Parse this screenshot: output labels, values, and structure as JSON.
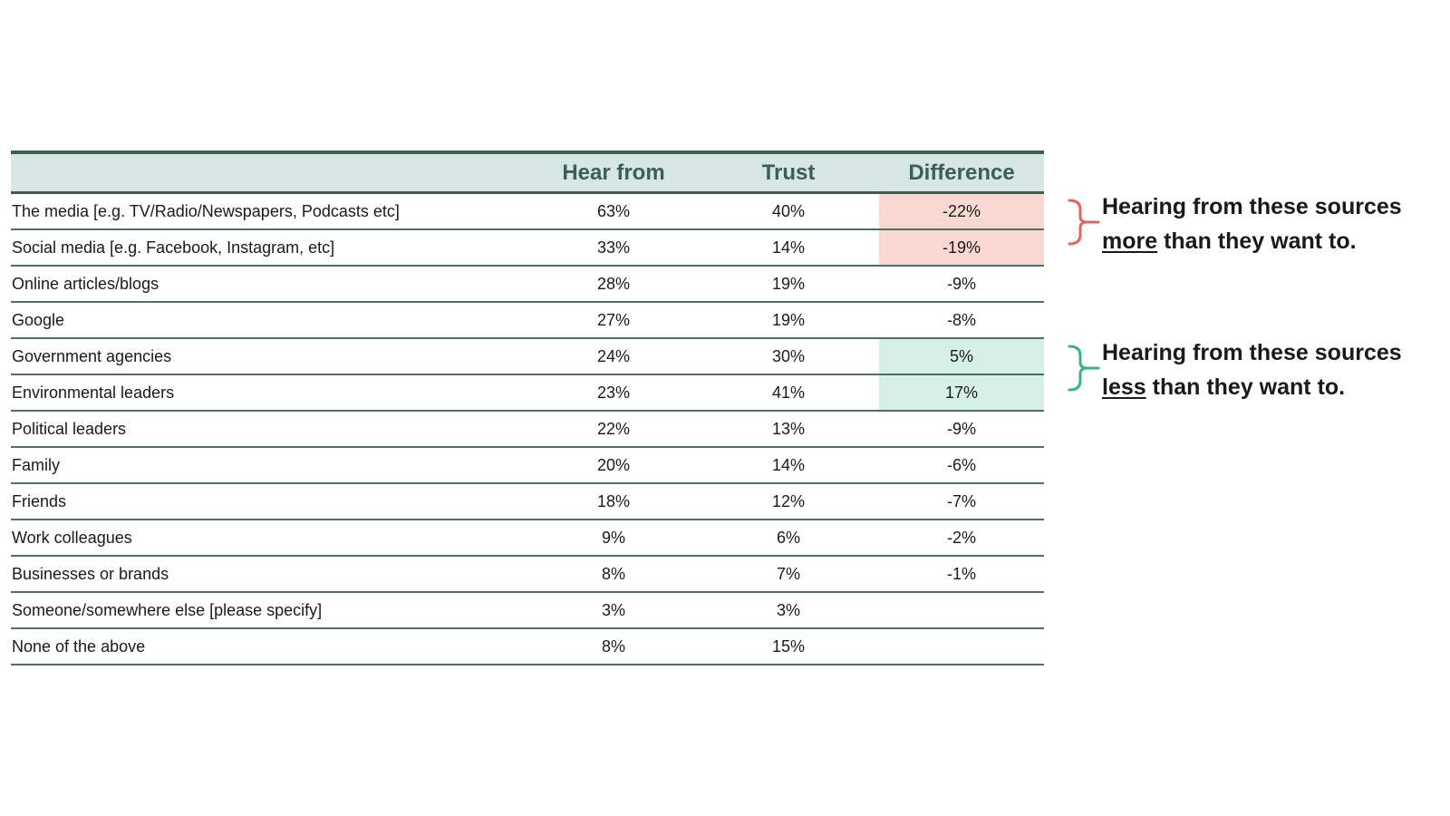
{
  "table": {
    "headers": [
      "",
      "Hear from",
      "Trust",
      "Difference"
    ],
    "rows": [
      {
        "label": "The media [e.g. TV/Radio/Newspapers, Podcasts etc]",
        "hear": "63%",
        "trust": "40%",
        "diff": "-22%",
        "highlight": "negative"
      },
      {
        "label": "Social media [e.g. Facebook, Instagram, etc]",
        "hear": "33%",
        "trust": "14%",
        "diff": "-19%",
        "highlight": "negative"
      },
      {
        "label": "Online articles/blogs",
        "hear": "28%",
        "trust": "19%",
        "diff": "-9%",
        "highlight": ""
      },
      {
        "label": "Google",
        "hear": "27%",
        "trust": "19%",
        "diff": "-8%",
        "highlight": ""
      },
      {
        "label": "Government agencies",
        "hear": "24%",
        "trust": "30%",
        "diff": "5%",
        "highlight": "positive"
      },
      {
        "label": "Environmental leaders",
        "hear": "23%",
        "trust": "41%",
        "diff": "17%",
        "highlight": "positive"
      },
      {
        "label": "Political leaders",
        "hear": "22%",
        "trust": "13%",
        "diff": "-9%",
        "highlight": ""
      },
      {
        "label": "Family",
        "hear": "20%",
        "trust": "14%",
        "diff": "-6%",
        "highlight": ""
      },
      {
        "label": "Friends",
        "hear": "18%",
        "trust": "12%",
        "diff": "-7%",
        "highlight": ""
      },
      {
        "label": "Work colleagues",
        "hear": "9%",
        "trust": "6%",
        "diff": "-2%",
        "highlight": ""
      },
      {
        "label": "Businesses or brands",
        "hear": "8%",
        "trust": "7%",
        "diff": "-1%",
        "highlight": ""
      },
      {
        "label": "Someone/somewhere else [please specify]",
        "hear": "3%",
        "trust": "3%",
        "diff": "",
        "highlight": ""
      },
      {
        "label": "None of the above",
        "hear": "8%",
        "trust": "15%",
        "diff": "",
        "highlight": ""
      }
    ]
  },
  "annotations": {
    "more": {
      "line1": "Hearing from these sources",
      "emphasis": "more",
      "rest": " than they want to.",
      "brace_color": "#e0655f"
    },
    "less": {
      "line1": "Hearing from these sources",
      "emphasis": "less",
      "rest": " than they want to.",
      "brace_color": "#3bb08f"
    }
  },
  "colors": {
    "header_bg": "#d6e6e4",
    "header_text": "#3d5e52",
    "rule": "#3d5e52",
    "negative_highlight": "#fad9d3",
    "positive_highlight": "#d6f0e8"
  }
}
